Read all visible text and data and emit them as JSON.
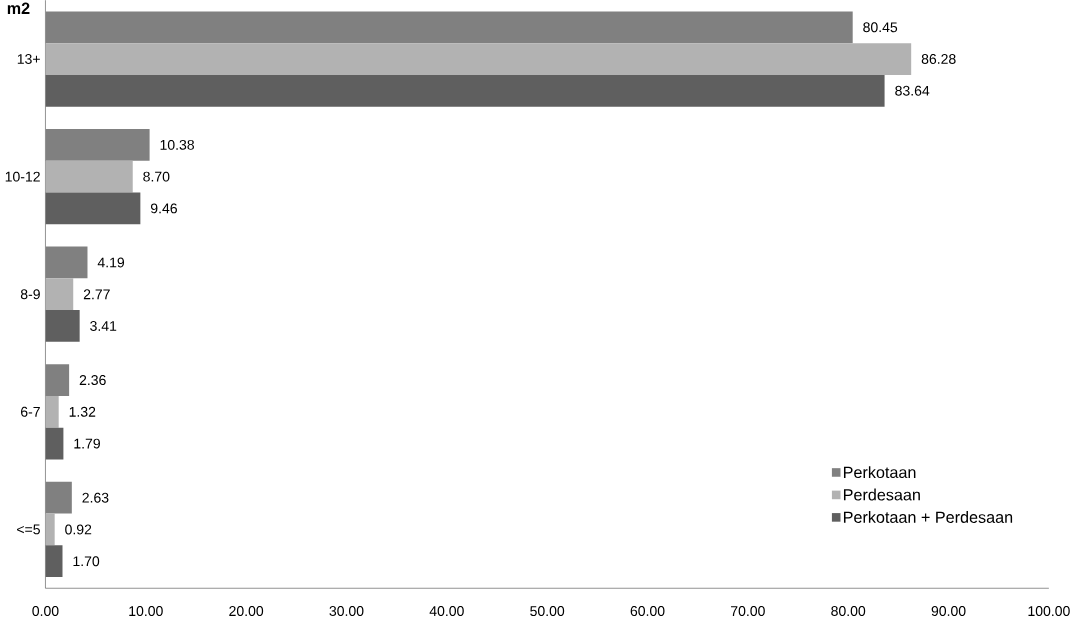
{
  "chart_data": {
    "type": "bar",
    "orientation": "horizontal",
    "ylabel": "m2",
    "categories": [
      "13+",
      "10-12",
      "8-9",
      "6-7",
      "<=5"
    ],
    "series": [
      {
        "name": "Perkotaan",
        "color": "#808080",
        "values": [
          80.45,
          10.38,
          4.19,
          2.36,
          2.63
        ],
        "value_labels": [
          "80.45",
          "10.38",
          "4.19",
          "2.36",
          "2.63"
        ]
      },
      {
        "name": "Perdesaan",
        "color": "#b2b2b2",
        "values": [
          86.28,
          8.7,
          2.77,
          1.32,
          0.92
        ],
        "value_labels": [
          "86.28",
          "8.70",
          "2.77",
          "1.32",
          "0.92"
        ]
      },
      {
        "name": "Perkotaan + Perdesaan",
        "color": "#5f5f5f",
        "values": [
          83.64,
          9.46,
          3.41,
          1.79,
          1.7
        ],
        "value_labels": [
          "83.64",
          "9.46",
          "3.41",
          "1.79",
          "1.70"
        ]
      }
    ],
    "xlim": [
      0,
      100
    ],
    "xticks": [
      {
        "value": 0,
        "label": "0.00"
      },
      {
        "value": 10,
        "label": "10.00"
      },
      {
        "value": 20,
        "label": "20.00"
      },
      {
        "value": 30,
        "label": "30.00"
      },
      {
        "value": 40,
        "label": "40.00"
      },
      {
        "value": 50,
        "label": "50.00"
      },
      {
        "value": 60,
        "label": "60.00"
      },
      {
        "value": 70,
        "label": "70.00"
      },
      {
        "value": 80,
        "label": "80.00"
      },
      {
        "value": 90,
        "label": "90.00"
      },
      {
        "value": 100,
        "label": "100.00"
      }
    ],
    "legend": "bottom right"
  }
}
